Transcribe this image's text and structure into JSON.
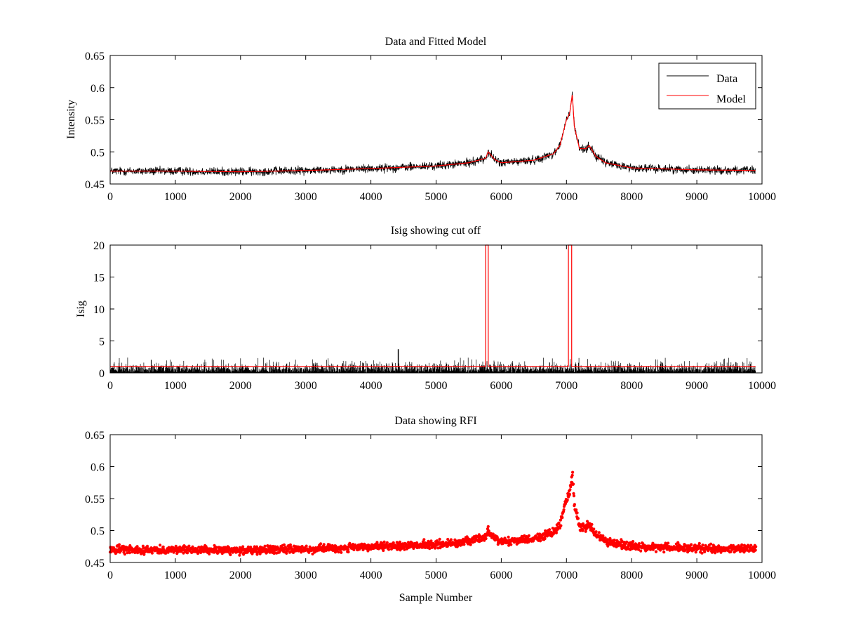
{
  "chart_data": [
    {
      "type": "line",
      "title": "Data and Fitted Model",
      "xlabel": "",
      "ylabel": "Intensity",
      "xlim": [
        0,
        10000
      ],
      "ylim": [
        0.45,
        0.65
      ],
      "xticks": [
        0,
        1000,
        2000,
        3000,
        4000,
        5000,
        6000,
        7000,
        8000,
        9000,
        10000
      ],
      "yticks": [
        0.45,
        0.5,
        0.55,
        0.6,
        0.65
      ],
      "ytick_labels": [
        "0.45",
        "0.5",
        "0.55",
        "0.6",
        "0.65"
      ],
      "grid": false,
      "legend_position": "top-right",
      "series": [
        {
          "name": "Data",
          "color": "#000000",
          "style": "noisy-line",
          "noise": 0.006,
          "points": [
            [
              0,
              0.47
            ],
            [
              1000,
              0.47
            ],
            [
              2000,
              0.469
            ],
            [
              3000,
              0.471
            ],
            [
              4000,
              0.474
            ],
            [
              5000,
              0.478
            ],
            [
              5500,
              0.483
            ],
            [
              5760,
              0.49
            ],
            [
              5800,
              0.5
            ],
            [
              5900,
              0.488
            ],
            [
              6000,
              0.483
            ],
            [
              6500,
              0.487
            ],
            [
              6800,
              0.497
            ],
            [
              6900,
              0.51
            ],
            [
              6950,
              0.53
            ],
            [
              7000,
              0.55
            ],
            [
              7050,
              0.56
            ],
            [
              7090,
              0.59
            ],
            [
              7120,
              0.54
            ],
            [
              7200,
              0.505
            ],
            [
              7300,
              0.505
            ],
            [
              7350,
              0.51
            ],
            [
              7450,
              0.493
            ],
            [
              7600,
              0.483
            ],
            [
              8000,
              0.475
            ],
            [
              9000,
              0.472
            ],
            [
              9900,
              0.471
            ]
          ]
        },
        {
          "name": "Model",
          "color": "#ff0000",
          "style": "line",
          "noise": 0.0,
          "points": [
            [
              0,
              0.47
            ],
            [
              1000,
              0.47
            ],
            [
              2000,
              0.469
            ],
            [
              3000,
              0.471
            ],
            [
              4000,
              0.474
            ],
            [
              5000,
              0.478
            ],
            [
              5500,
              0.483
            ],
            [
              5760,
              0.49
            ],
            [
              5800,
              0.5
            ],
            [
              5900,
              0.488
            ],
            [
              6000,
              0.483
            ],
            [
              6500,
              0.487
            ],
            [
              6800,
              0.497
            ],
            [
              6900,
              0.51
            ],
            [
              6950,
              0.53
            ],
            [
              7000,
              0.55
            ],
            [
              7050,
              0.56
            ],
            [
              7090,
              0.59
            ],
            [
              7120,
              0.54
            ],
            [
              7200,
              0.505
            ],
            [
              7300,
              0.505
            ],
            [
              7350,
              0.51
            ],
            [
              7450,
              0.493
            ],
            [
              7600,
              0.483
            ],
            [
              8000,
              0.475
            ],
            [
              9000,
              0.472
            ],
            [
              9900,
              0.471
            ]
          ]
        }
      ]
    },
    {
      "type": "line",
      "title": "Isig showing cut off",
      "xlabel": "",
      "ylabel": "Isig",
      "xlim": [
        0,
        10000
      ],
      "ylim": [
        0,
        20
      ],
      "xticks": [
        0,
        1000,
        2000,
        3000,
        4000,
        5000,
        6000,
        7000,
        8000,
        9000,
        10000
      ],
      "yticks": [
        0,
        5,
        10,
        15,
        20
      ],
      "ytick_labels": [
        "0",
        "5",
        "10",
        "15",
        "20"
      ],
      "grid": false,
      "series": [
        {
          "color": "#000000",
          "style": "noise-spikes",
          "x_range": [
            0,
            9900
          ],
          "typical_max": 2.0,
          "peak_max": 3.7
        },
        {
          "color": "#ff0000",
          "style": "cutoff-step",
          "baseline": 1.0,
          "high": 21,
          "windows": [
            [
              5760,
              5800
            ],
            [
              7030,
              7080
            ]
          ]
        }
      ]
    },
    {
      "type": "scatter",
      "title": "Data showing RFI",
      "xlabel": "Sample Number",
      "ylabel": "",
      "xlim": [
        0,
        10000
      ],
      "ylim": [
        0.45,
        0.65
      ],
      "xticks": [
        0,
        1000,
        2000,
        3000,
        4000,
        5000,
        6000,
        7000,
        8000,
        9000,
        10000
      ],
      "yticks": [
        0.45,
        0.5,
        0.55,
        0.6,
        0.65
      ],
      "ytick_labels": [
        "0.45",
        "0.5",
        "0.55",
        "0.6",
        "0.65"
      ],
      "grid": false,
      "series": [
        {
          "color": "#ff0000",
          "marker": "dot",
          "noise": 0.006,
          "points": [
            [
              0,
              0.47
            ],
            [
              1000,
              0.47
            ],
            [
              2000,
              0.469
            ],
            [
              3000,
              0.471
            ],
            [
              4000,
              0.474
            ],
            [
              5000,
              0.478
            ],
            [
              5500,
              0.483
            ],
            [
              5760,
              0.49
            ],
            [
              5800,
              0.5
            ],
            [
              5900,
              0.488
            ],
            [
              6000,
              0.483
            ],
            [
              6500,
              0.487
            ],
            [
              6800,
              0.497
            ],
            [
              6900,
              0.51
            ],
            [
              6950,
              0.53
            ],
            [
              7000,
              0.55
            ],
            [
              7050,
              0.56
            ],
            [
              7090,
              0.59
            ],
            [
              7120,
              0.54
            ],
            [
              7200,
              0.505
            ],
            [
              7300,
              0.505
            ],
            [
              7350,
              0.51
            ],
            [
              7450,
              0.493
            ],
            [
              7600,
              0.483
            ],
            [
              8000,
              0.475
            ],
            [
              9000,
              0.472
            ],
            [
              9900,
              0.471
            ]
          ]
        }
      ]
    }
  ]
}
